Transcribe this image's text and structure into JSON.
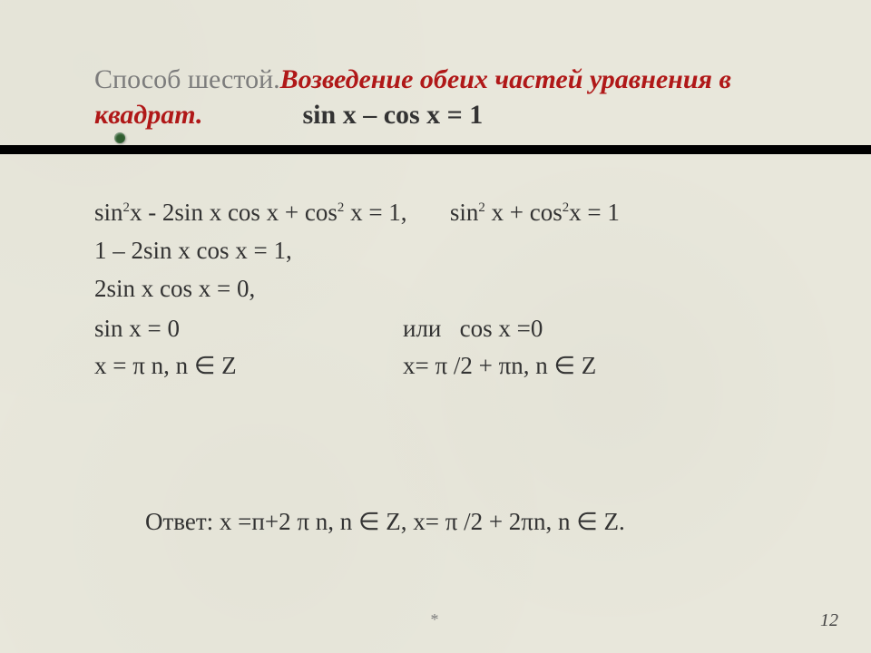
{
  "colors": {
    "background": "#e8e7db",
    "text": "#333333",
    "title_gray": "#7c7c7c",
    "title_red": "#b01818",
    "accent_dot": "#2f5d2f",
    "bar": "#000000"
  },
  "fonts": {
    "family": "Times New Roman",
    "title_size_pt": 22,
    "body_size_pt": 20
  },
  "title": {
    "prefix": "Способ шестой.",
    "main": "Возведение обеих частей уравнения в квадрат.",
    "equation": "sin x – cos x  = 1"
  },
  "lines": {
    "l1a": "sin",
    "l1b": "x - 2sin x cos x + cos",
    "l1c": " x = 1,",
    "l1_ident_a": "sin",
    "l1_ident_b": " x + cos",
    "l1_ident_c": "x = 1",
    "l2": "1 – 2sin x cos x = 1,",
    "l3": "2sin x cos x = 0,",
    "left1": "sin x = 0",
    "left2": "x = π n,  n ∈  Z",
    "rightOr": "или",
    "right1": "cos x =0",
    "right2": "x= π /2 + πn, n ∈  Z"
  },
  "answer": "Ответ:  x =п+2 π n,  n ∈  Z,  x= π /2 + 2πn, n ∈  Z.",
  "page": "12",
  "footer_mark": "*"
}
